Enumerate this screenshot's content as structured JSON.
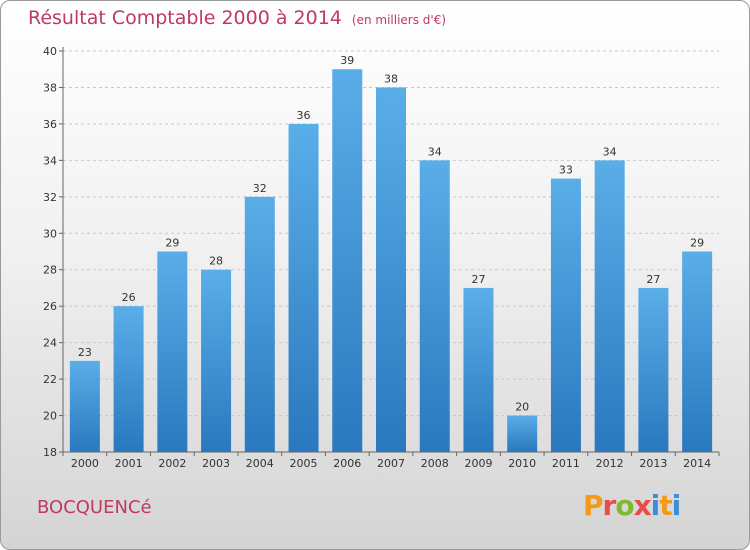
{
  "header": {
    "title": "Résultat Comptable 2000 à 2014",
    "unit": "(en milliers d'€)"
  },
  "commune": "BOCQUENCé",
  "logo": {
    "p": "P",
    "r": "r",
    "o": "o",
    "x": "x",
    "i": "i",
    "t": "t",
    "i2": "i"
  },
  "colors": {
    "bar_top": "#5aaee8",
    "bar_bottom": "#2a78be",
    "title": "#c0395f"
  },
  "chart_data": {
    "type": "bar",
    "title": "Résultat Comptable 2000 à 2014",
    "subtitle": "(en milliers d'€)",
    "xlabel": "",
    "ylabel": "",
    "categories": [
      "2000",
      "2001",
      "2002",
      "2003",
      "2004",
      "2005",
      "2006",
      "2007",
      "2008",
      "2009",
      "2010",
      "2011",
      "2012",
      "2013",
      "2014"
    ],
    "values": [
      23,
      26,
      29,
      28,
      32,
      36,
      39,
      38,
      34,
      27,
      20,
      33,
      34,
      27,
      29
    ],
    "ylim": [
      18,
      40
    ],
    "yticks": [
      18,
      20,
      22,
      24,
      26,
      28,
      30,
      32,
      34,
      36,
      38,
      40
    ],
    "grid": true
  }
}
